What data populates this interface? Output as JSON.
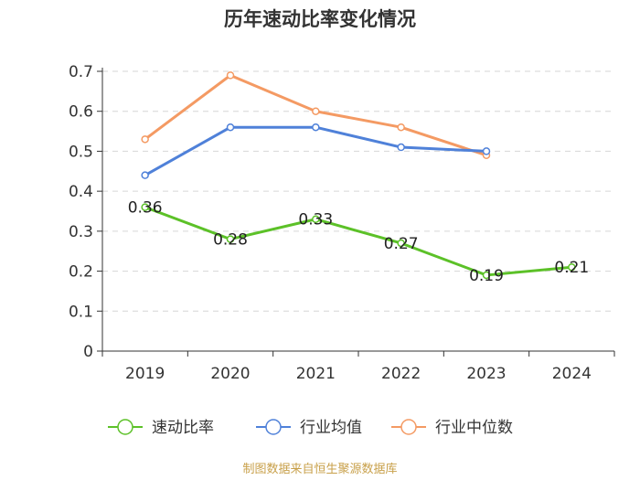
{
  "chart_data": {
    "type": "line",
    "title": "历年速动比率变化情况",
    "categories": [
      "2019",
      "2020",
      "2021",
      "2022",
      "2023",
      "2024"
    ],
    "ylim": [
      0,
      0.7
    ],
    "yticks": [
      "0",
      "0.1",
      "0.2",
      "0.3",
      "0.4",
      "0.5",
      "0.6",
      "0.7"
    ],
    "grid": true,
    "legend_position": "bottom",
    "series": [
      {
        "name": "速动比率",
        "color": "#5cc128",
        "values": [
          0.36,
          0.28,
          0.33,
          0.27,
          0.19,
          0.21
        ],
        "labels": [
          "0.36",
          "0.28",
          "0.33",
          "0.27",
          "0.19",
          "0.21"
        ]
      },
      {
        "name": "行业均值",
        "color": "#4f81d9",
        "values": [
          0.44,
          0.56,
          0.56,
          0.51,
          0.5,
          null
        ]
      },
      {
        "name": "行业中位数",
        "color": "#f49a63",
        "values": [
          0.53,
          0.69,
          0.6,
          0.56,
          0.49,
          null
        ]
      }
    ]
  },
  "source": "制图数据来自恒生聚源数据库"
}
